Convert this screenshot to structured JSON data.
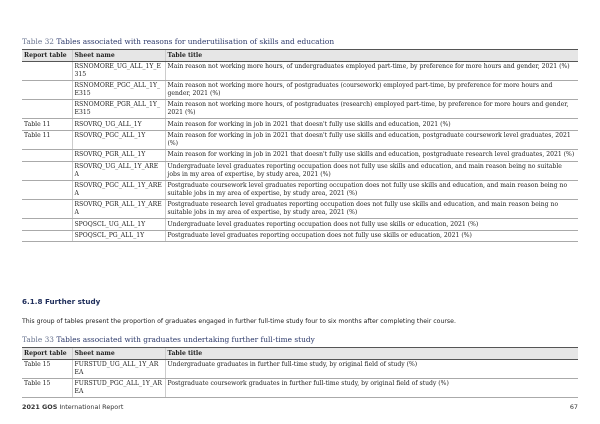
{
  "tables": [
    {
      "caption": {
        "number": "Table 32",
        "text": "Tables associated with reasons for underutilisation of skills and education"
      },
      "headers": [
        "Report table",
        "Sheet name",
        "Table title"
      ],
      "rows": [
        {
          "sheet": "RSNOMORE_UG_ALL_1Y_E315",
          "title": "Main reason not working more hours, of undergraduates employed part-time, by preference for more hours and gender, 2021 (%)"
        },
        {
          "sheet": "RSNOMORE_PGC_ALL_1Y_E315",
          "title": "Main reason not working more hours, of postgraduates (coursework) employed part-time, by preference for more hours and gender, 2021 (%)"
        },
        {
          "sheet": "RSNOMORE_PGR_ALL_1Y_E315",
          "title": "Main reason not working more hours, of postgraduates (research) employed part-time, by preference for more hours and gender, 2021 (%)"
        },
        {
          "report": "Table 11",
          "sheet": "RSOVRQ_UG_ALL_1Y",
          "title": "Main reason for working in job in 2021 that doesn't fully use skills and education, 2021 (%)"
        },
        {
          "report": "Table 11",
          "sheet": "RSOVRQ_PGC_ALL_1Y",
          "title": "Main reason for working in job in 2021 that doesn't fully use skills and education, postgraduate coursework level graduates, 2021 (%)"
        },
        {
          "sheet": "RSOVRQ_PGR_ALL_1Y",
          "title": "Main reason for working in job in 2021 that doesn't fully use skills and education, postgraduate research level graduates, 2021 (%)"
        },
        {
          "sheet": "RSOVRQ_UG_ALL_1Y_AREA",
          "title": "Undergraduate level graduates reporting occupation does not fully use skills and education, and main reason being no suitable jobs in my area of expertise, by study area, 2021 (%)"
        },
        {
          "sheet": "RSOVRQ_PGC_ALL_1Y_AREA",
          "title": "Postgraduate coursework level graduates reporting occupation does not fully use skills and education, and main reason being no suitable jobs in my area of expertise, by study area, 2021 (%)"
        },
        {
          "sheet": "RSOVRQ_PGR_ALL_1Y_AREA",
          "title": "Postgraduate research level graduates reporting occupation does not fully use skills and education, and main reason being no suitable jobs in my area of expertise, by study area, 2021 (%)"
        },
        {
          "sheet": "SPOQSCL_UG_ALL_1Y",
          "title": "Undergraduate level graduates reporting occupation does not fully use skills or education, 2021 (%)"
        },
        {
          "sheet": "SPOQSCL_PG_ALL_1Y",
          "title": "Postgraduate level graduates reporting occupation does not fully use skills or education, 2021 (%)"
        }
      ]
    },
    {
      "caption": {
        "number": "Table 33",
        "text": "Tables associated with graduates undertaking further full-time study"
      },
      "headers": [
        "Report table",
        "Sheet name",
        "Table title"
      ],
      "rows": [
        {
          "report": "Table 15",
          "sheet": "FURSTUD_UG_ALL_1Y_AREA",
          "title": "Undergraduate graduates in further full-time study, by original field of study (%)"
        },
        {
          "report": "Table 15",
          "sheet": "FURSTUD_PGC_ALL_1Y_AREA",
          "title": "Postgraduate coursework graduates in further full-time study, by original field of study (%)"
        }
      ]
    }
  ],
  "section": {
    "heading": "6.1.8 Further study",
    "paragraph": "This group of tables present the proportion of graduates engaged in further full-time study four to six months after completing their course."
  },
  "footer": {
    "report_bold": "2021 GOS",
    "report": "International Report",
    "page": "67"
  }
}
